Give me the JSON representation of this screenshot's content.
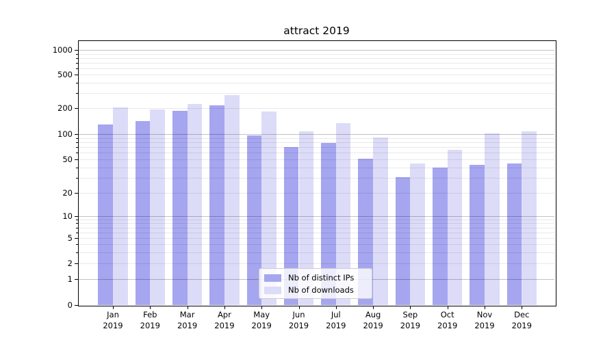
{
  "title": "attract 2019",
  "chart_data": {
    "type": "bar",
    "title": "attract 2019",
    "categories": [
      "Jan",
      "Feb",
      "Mar",
      "Apr",
      "May",
      "Jun",
      "Jul",
      "Aug",
      "Sep",
      "Oct",
      "Nov",
      "Dec"
    ],
    "year": "2019",
    "series": [
      {
        "name": "Nb of distinct IPs",
        "color": "#a5a5f0",
        "values": [
          130,
          142,
          186,
          215,
          97,
          70,
          78,
          51,
          31,
          40,
          43,
          45
        ]
      },
      {
        "name": "Nb of downloads",
        "color": "#dcdcf8",
        "values": [
          204,
          193,
          224,
          285,
          182,
          108,
          134,
          92,
          45,
          65,
          102,
          107
        ]
      }
    ],
    "yticks": [
      0,
      1,
      2,
      5,
      10,
      20,
      50,
      100,
      200,
      500,
      1000
    ],
    "yscale": "symlog",
    "ylim": [
      0,
      1300
    ],
    "xlabel": "",
    "ylabel": "",
    "grid": "horizontal major and minor gridlines",
    "legend_position": "lower center inside plot"
  },
  "legend": {
    "items": [
      {
        "label": "Nb of distinct IPs"
      },
      {
        "label": "Nb of downloads"
      }
    ]
  }
}
